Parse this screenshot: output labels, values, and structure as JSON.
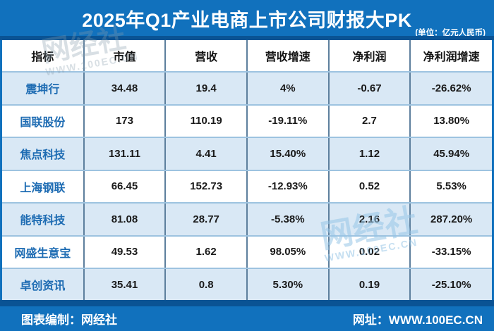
{
  "header": {
    "title": "2025年Q1产业电商上市公司财报大PK",
    "unit_note": "(单位：亿元人民币)"
  },
  "chart_data": {
    "type": "table",
    "title": "2025年Q1产业电商上市公司财报大PK",
    "unit": "亿元人民币",
    "columns": [
      "指标",
      "市值",
      "营收",
      "营收增速",
      "净利润",
      "净利润增速"
    ],
    "rows": [
      [
        "震坤行",
        "34.48",
        "19.4",
        "4%",
        "-0.67",
        "-26.62%"
      ],
      [
        "国联股份",
        "173",
        "110.19",
        "-19.11%",
        "2.7",
        "13.80%"
      ],
      [
        "焦点科技",
        "131.11",
        "4.41",
        "15.40%",
        "1.12",
        "45.94%"
      ],
      [
        "上海钢联",
        "66.45",
        "152.73",
        "-12.93%",
        "0.52",
        "5.53%"
      ],
      [
        "能特科技",
        "81.08",
        "28.77",
        "-5.38%",
        "2.16",
        "287.20%"
      ],
      [
        "网盛生意宝",
        "49.53",
        "1.62",
        "98.05%",
        "0.02",
        "-33.15%"
      ],
      [
        "卓创资讯",
        "35.41",
        "0.8",
        "5.30%",
        "0.19",
        "-25.10%"
      ]
    ]
  },
  "watermarks": {
    "site_name": "网经社",
    "site_url": "WWW.100EC.CN"
  },
  "footer": {
    "credit": "图表编制：网经社",
    "website": "网址：WWW.100EC.CN"
  },
  "colors": {
    "background": "#1171bd",
    "dark_strip": "#0a5394",
    "row_alt": "#d9e8f5",
    "row_white": "#ffffff",
    "border_vertical": "#5d7f9d",
    "border_horizontal": "#9dc3e0",
    "company_text": "#1e6cb3",
    "value_text": "#1a1a1a",
    "title_text": "#ffffff"
  }
}
